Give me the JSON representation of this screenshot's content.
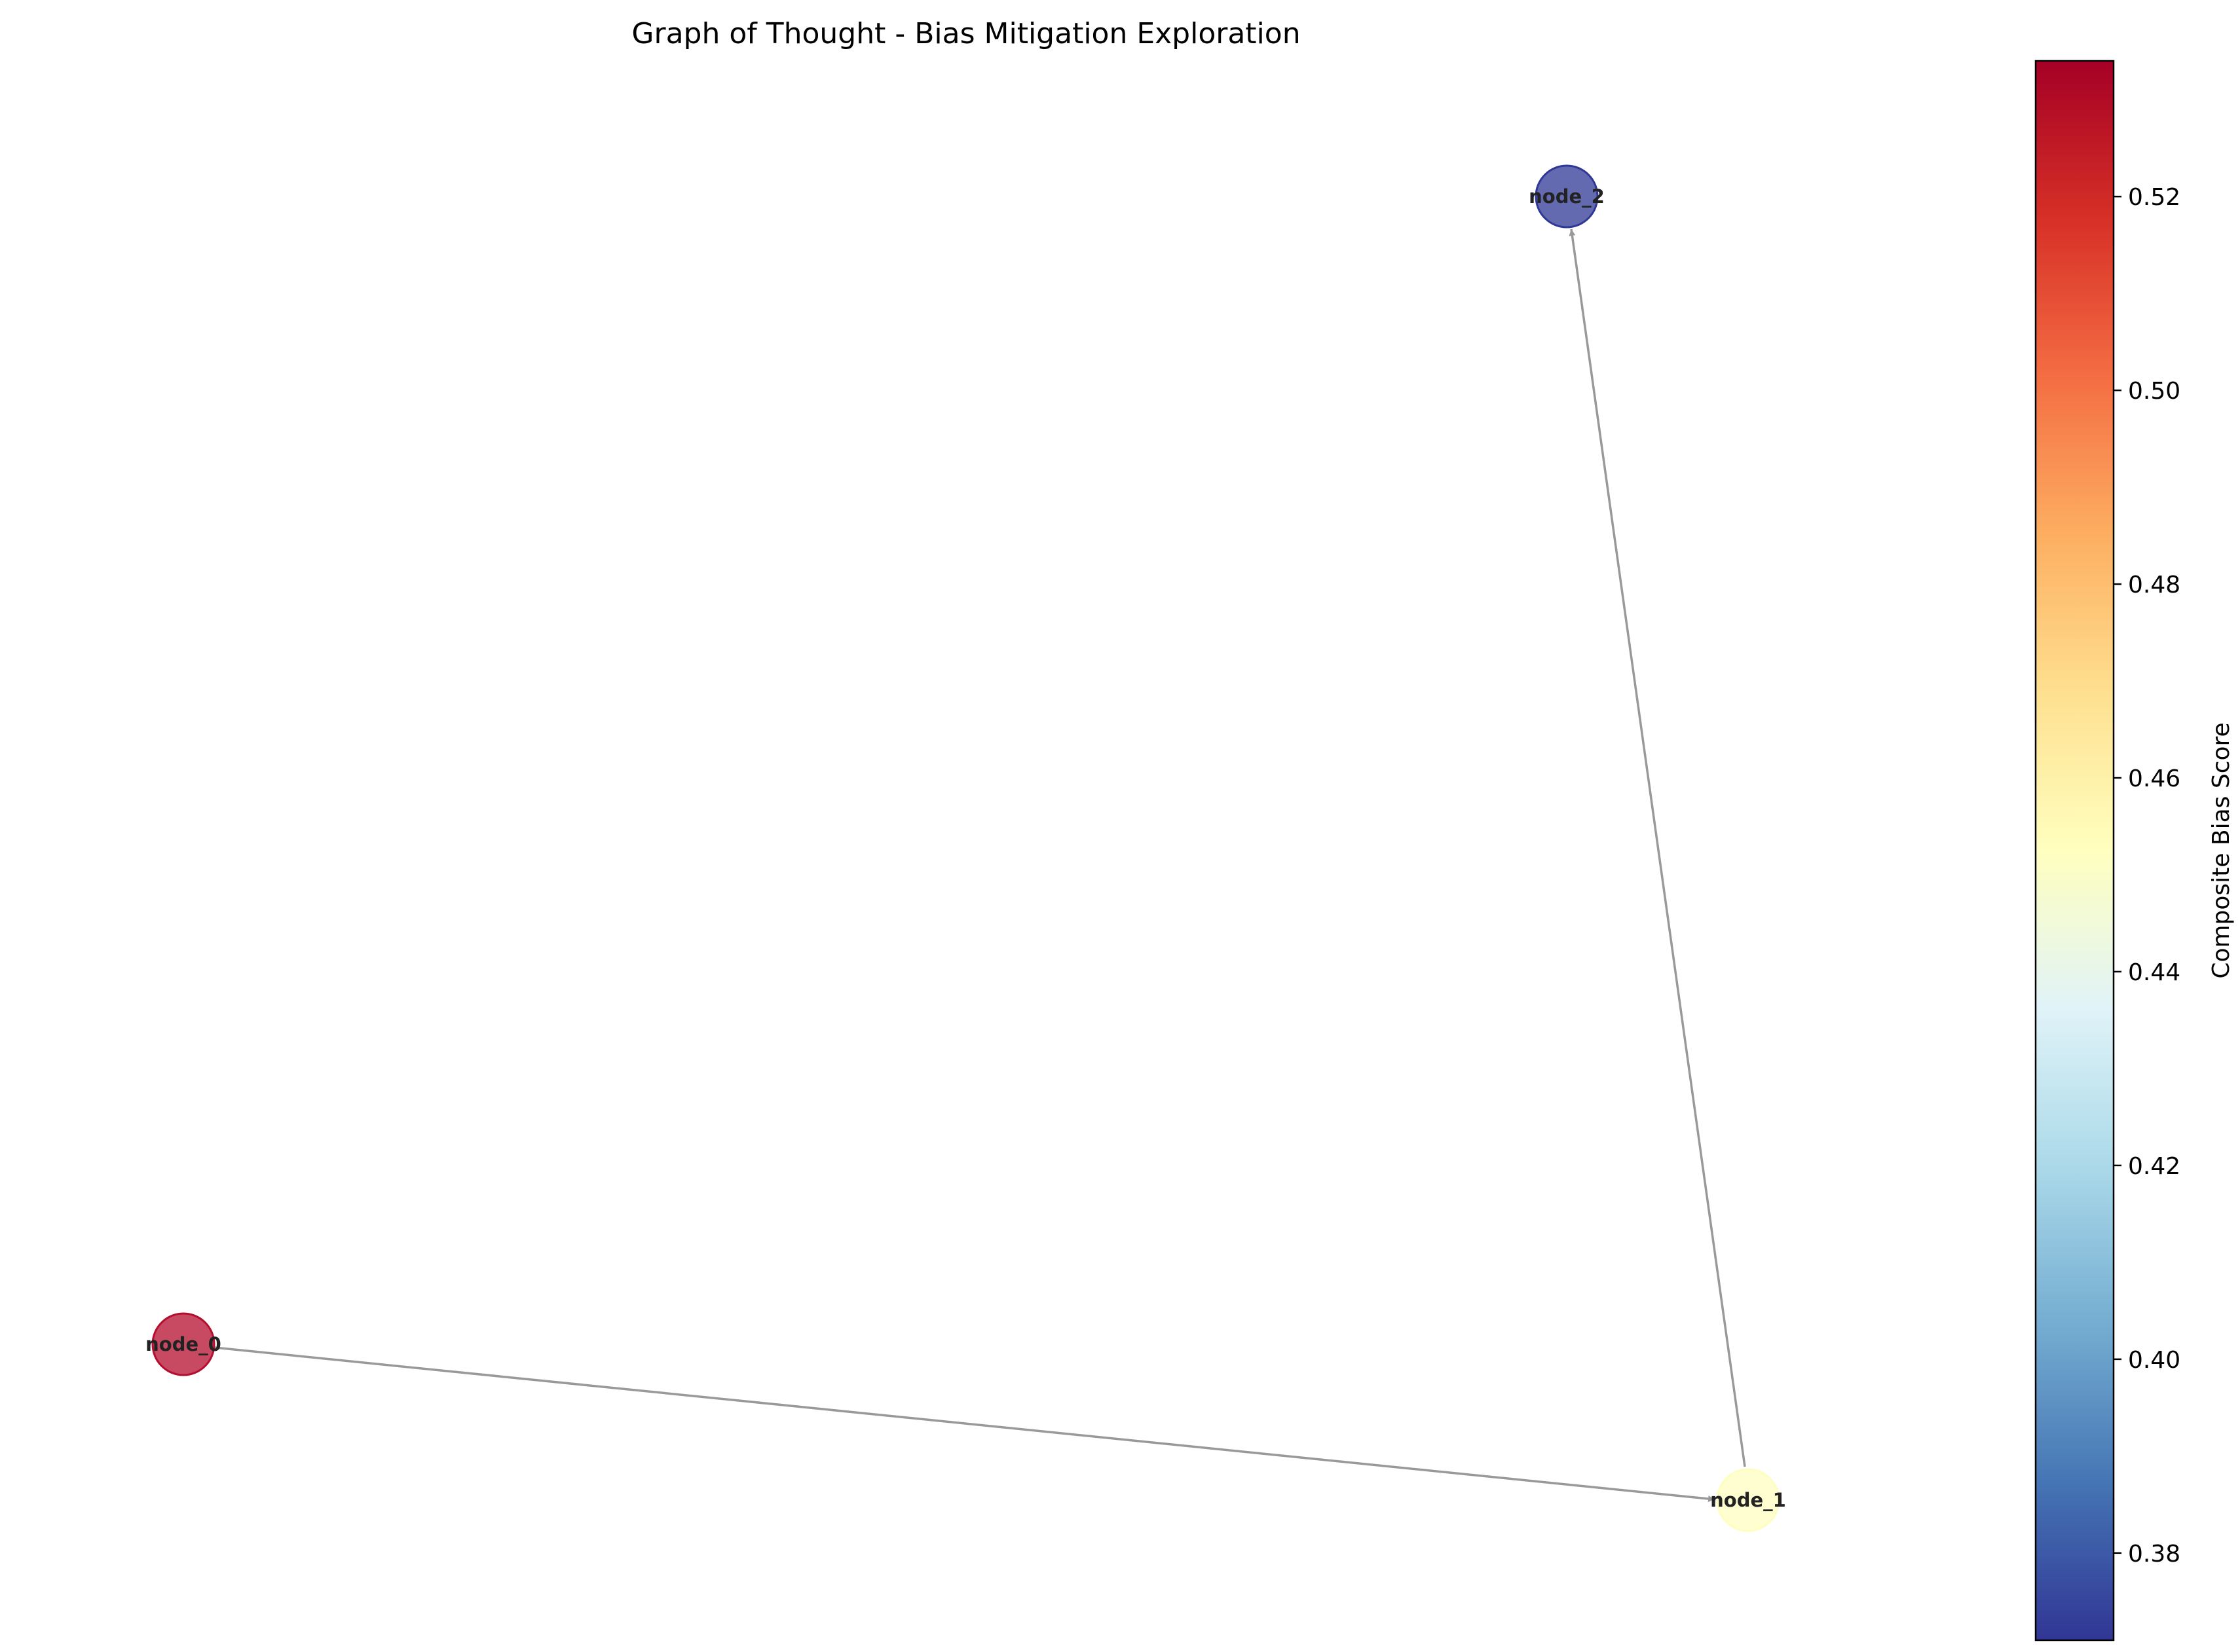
{
  "title": "Graph of Thought - Bias Mitigation Exploration",
  "nodes": [
    {
      "id": "node_0",
      "label": "node_0",
      "score": 0.533,
      "color": "#b40e2e"
    },
    {
      "id": "node_1",
      "label": "node_1",
      "score": 0.455,
      "color": "#fefec0"
    },
    {
      "id": "node_2",
      "label": "node_2",
      "score": 0.371,
      "color": "#2f3896"
    }
  ],
  "edges": [
    {
      "from": "node_0",
      "to": "node_1"
    },
    {
      "from": "node_1",
      "to": "node_2"
    }
  ],
  "edge_color": "#999999",
  "colorbar": {
    "label": "Composite Bias Score",
    "colormap": "RdYlBu_r",
    "range": [
      0.371,
      0.534
    ],
    "ticks": [
      "0.38",
      "0.40",
      "0.42",
      "0.44",
      "0.46",
      "0.48",
      "0.50",
      "0.52"
    ]
  }
}
